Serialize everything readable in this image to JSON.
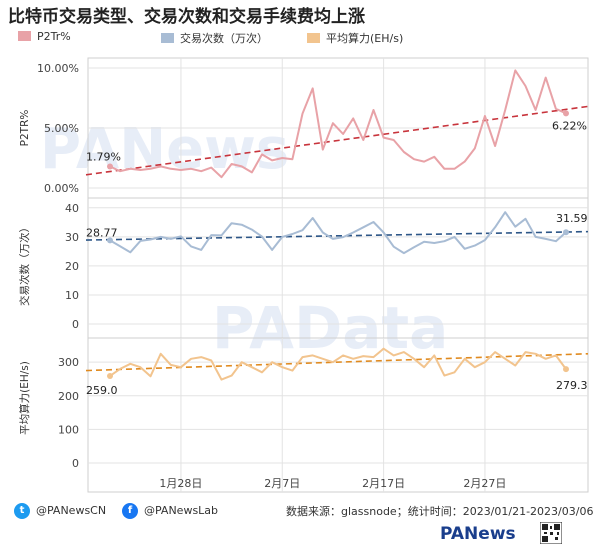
{
  "title": "比特币交易类型、交易次数和交易手续费均上涨",
  "legend": {
    "items": [
      {
        "label": "P2Tr%",
        "color": "#e8a2a7"
      },
      {
        "label": "交易次数（万次）",
        "color": "#a8bcd4"
      },
      {
        "label": "平均算力(EH/s)",
        "color": "#f2c48e"
      }
    ]
  },
  "watermark": [
    "PANews",
    "PAData"
  ],
  "footer": {
    "twitter_handle": "@PANewsCN",
    "facebook_handle": "@PANewsLab",
    "source": "数据来源：glassnode；统计时间：2023/01/21-2023/03/06",
    "brand": "PANews"
  },
  "colors": {
    "p2tr_line": "#e8a2a7",
    "p2tr_trend": "#c8343c",
    "tx_line": "#a8bcd4",
    "tx_trend": "#2d5687",
    "hash_line": "#f2c48e",
    "hash_trend": "#e08a1f",
    "grid": "#e3e3e3",
    "panel_border": "#cfcfcf"
  },
  "chart_data": {
    "type": "line",
    "x_ticks": [
      "1月28日",
      "2月7日",
      "2月17日",
      "2月27日"
    ],
    "x_tick_index": [
      7,
      17,
      27,
      37
    ],
    "panels": [
      {
        "name": "p2tr",
        "ylabel": "P2TR%",
        "yticks": [
          "10.00%",
          "5.00%",
          "0.00%"
        ],
        "ytick_values": [
          10,
          5,
          0
        ],
        "ylim": [
          0,
          10.5
        ],
        "values": [
          1.79,
          1.4,
          1.6,
          1.5,
          1.6,
          1.8,
          1.6,
          1.5,
          1.6,
          1.4,
          1.7,
          0.9,
          2.0,
          1.8,
          1.3,
          2.8,
          2.3,
          2.5,
          2.4,
          6.2,
          8.3,
          3.2,
          5.4,
          4.5,
          5.8,
          4.0,
          6.5,
          4.2,
          4.0,
          3.0,
          2.4,
          2.2,
          2.6,
          1.6,
          1.6,
          2.2,
          3.3,
          6.0,
          3.5,
          6.5,
          9.8,
          8.5,
          6.5,
          9.2,
          6.6,
          6.22
        ],
        "trend": [
          1.1,
          6.8
        ],
        "start_label": "1.79%",
        "end_label": "6.22%"
      },
      {
        "name": "transactions",
        "ylabel": "交易次数（万次）",
        "yticks": [
          "40",
          "30",
          "20",
          "10",
          "0"
        ],
        "ytick_values": [
          40,
          30,
          20,
          10,
          0
        ],
        "ylim": [
          0,
          42
        ],
        "values": [
          28.77,
          26.8,
          24.7,
          28.6,
          29.1,
          30.0,
          29.3,
          30.2,
          26.7,
          25.5,
          30.6,
          30.5,
          34.7,
          34.2,
          32.5,
          30.1,
          25.5,
          30.0,
          31.0,
          32.3,
          36.5,
          31.5,
          29.3,
          29.9,
          31.5,
          33.3,
          35.1,
          31.5,
          26.6,
          24.4,
          26.4,
          28.3,
          27.9,
          28.5,
          30.0,
          25.9,
          27.0,
          28.9,
          33.3,
          38.5,
          33.5,
          36.2,
          30.0,
          29.3,
          28.5,
          31.59
        ],
        "trend": [
          28.9,
          31.8
        ],
        "start_label": "28.77",
        "end_label": "31.59"
      },
      {
        "name": "hashrate",
        "ylabel": "平均算力(EH/s)",
        "yticks": [
          "300",
          "200",
          "100",
          "0"
        ],
        "ytick_values": [
          300,
          200,
          100,
          0
        ],
        "ylim": [
          0,
          360
        ],
        "values": [
          259.0,
          280,
          295,
          285,
          258,
          325,
          292,
          285,
          310,
          315,
          305,
          248,
          260,
          300,
          285,
          270,
          300,
          285,
          275,
          315,
          320,
          310,
          300,
          320,
          310,
          318,
          315,
          340,
          320,
          330,
          310,
          285,
          320,
          260,
          270,
          310,
          285,
          300,
          330,
          310,
          290,
          330,
          325,
          310,
          320,
          279.3
        ],
        "trend": [
          275,
          325
        ],
        "start_label": "259.0",
        "end_label": "279.3"
      }
    ]
  }
}
